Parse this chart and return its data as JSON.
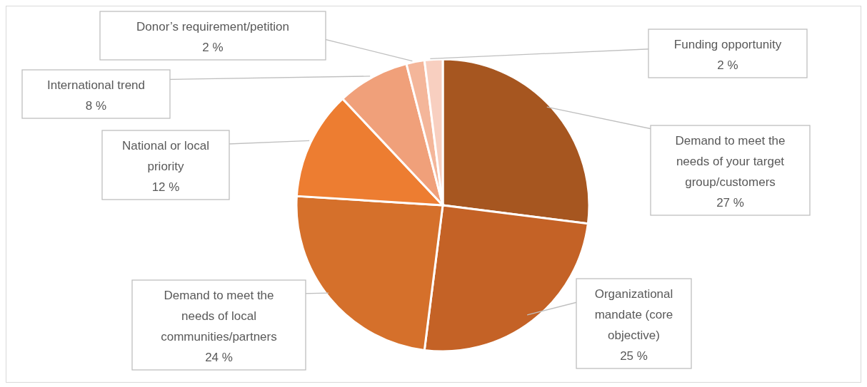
{
  "chart_data": {
    "type": "pie",
    "categories": [
      "Demand to meet the needs of your target group/customers",
      "Organizational mandate (core objective)",
      "Demand to meet the needs of local communities/partners",
      "National or local priority",
      "International trend",
      "Donor’s requirement/petition",
      "Funding opportunity"
    ],
    "values": [
      27,
      25,
      24,
      12,
      8,
      2,
      2
    ],
    "value_labels": [
      "27 %",
      "25 %",
      "24 %",
      "12 %",
      "8 %",
      "2 %",
      "2 %"
    ],
    "colors": [
      "#a65620",
      "#c46226",
      "#d5702b",
      "#ed7d31",
      "#f0a07a",
      "#f4b69a",
      "#f8cfc0"
    ],
    "legend": false
  }
}
